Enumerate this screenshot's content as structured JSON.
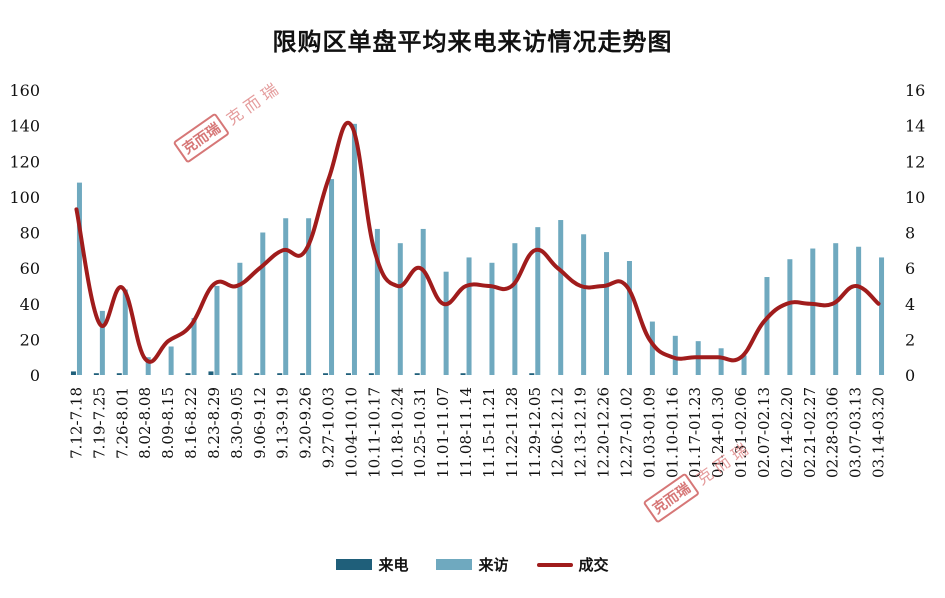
{
  "chart_data": {
    "type": "bar+line",
    "title": "限购区单盘平均来电来访情况走势图",
    "categories": [
      "7.12-7.18",
      "7.19-7.25",
      "7.26-8.01",
      "8.02-8.08",
      "8.09-8.15",
      "8.16-8.22",
      "8.23-8.29",
      "8.30-9.05",
      "9.06-9.12",
      "9.13-9.19",
      "9.20-9.26",
      "9.27-10.03",
      "10.04-10.10",
      "10.11-10.17",
      "10.18-10.24",
      "10.25-10.31",
      "11.01-11.07",
      "11.08-11.14",
      "11.15-11.21",
      "11.22-11.28",
      "11.29-12.05",
      "12.06-12.12",
      "12.13-12.19",
      "12.20-12.26",
      "12.27-01.02",
      "01.03-01.09",
      "01.10-01.16",
      "01.17-01.23",
      "01.24-01.30",
      "01.31-02.06",
      "02.07-02.13",
      "02.14-02.20",
      "02.21-02.27",
      "02.28-03.06",
      "03.07-03.13",
      "03.14-03.20"
    ],
    "series": [
      {
        "name": "来电",
        "axis": "left",
        "kind": "bar",
        "color": "#1f5f7a",
        "values": [
          2,
          1,
          1,
          0,
          0,
          1,
          2,
          1,
          1,
          1,
          1,
          1,
          1,
          1,
          0,
          1,
          0,
          1,
          0,
          0,
          1,
          0,
          0,
          0,
          0,
          0,
          0,
          0,
          0,
          0,
          0,
          0,
          0,
          0,
          0,
          0
        ]
      },
      {
        "name": "来访",
        "axis": "left",
        "kind": "bar",
        "color": "#6fa9bf",
        "values": [
          108,
          36,
          48,
          10,
          16,
          32,
          50,
          63,
          80,
          88,
          88,
          110,
          141,
          82,
          74,
          82,
          58,
          66,
          63,
          74,
          83,
          87,
          79,
          69,
          64,
          30,
          22,
          19,
          15,
          11,
          55,
          65,
          71,
          74,
          72,
          66
        ]
      },
      {
        "name": "成交",
        "axis": "right",
        "kind": "line",
        "color": "#a01c1c",
        "values": [
          9.3,
          2.9,
          4.9,
          0.9,
          1.9,
          2.8,
          5.1,
          5.0,
          6.0,
          7.0,
          7.0,
          11.0,
          14.0,
          7.0,
          5.0,
          6.0,
          4.0,
          5.0,
          5.0,
          5.0,
          7.0,
          6.0,
          5.0,
          5.0,
          5.0,
          2.0,
          1.0,
          1.0,
          1.0,
          1.0,
          3.0,
          4.0,
          4.0,
          4.0,
          5.0,
          4.0
        ]
      }
    ],
    "ylim_left": [
      0,
      160
    ],
    "yticks_left": [
      "0",
      "20",
      "40",
      "60",
      "80",
      "100",
      "120",
      "140",
      "160"
    ],
    "ylim_right": [
      0,
      16
    ],
    "yticks_right": [
      "0",
      "2",
      "4",
      "6",
      "8",
      "10",
      "12",
      "14",
      "16"
    ],
    "grid": false,
    "legend_position": "bottom"
  },
  "legend": {
    "calls": "来电",
    "visits": "来访",
    "deals": "成交"
  },
  "watermark": {
    "seal": "克而瑞",
    "text": "克 而 瑞"
  }
}
